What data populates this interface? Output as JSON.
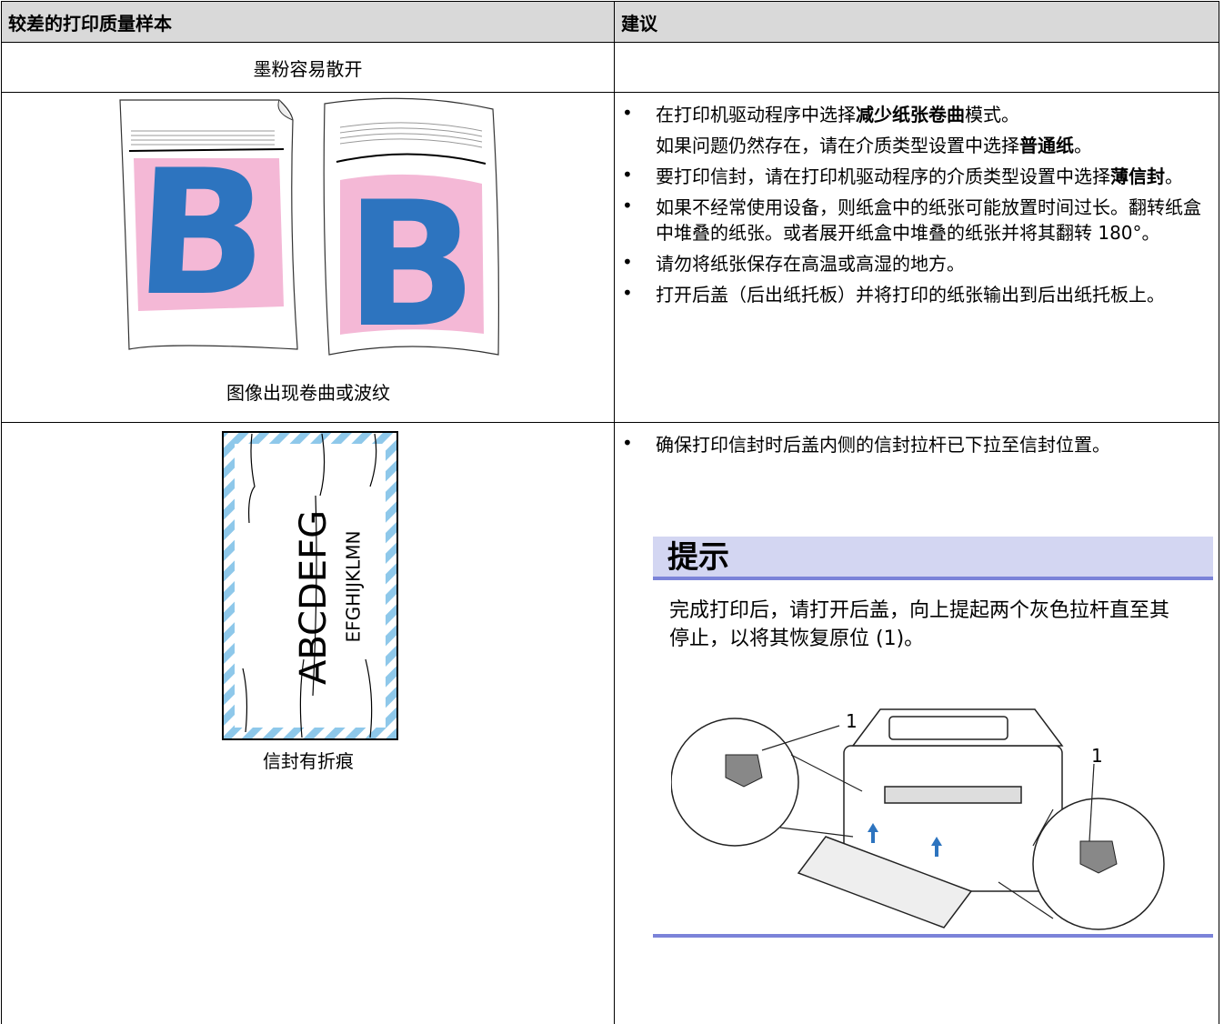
{
  "table": {
    "headers": [
      "较差的打印质量样本",
      "建议"
    ],
    "rows": [
      {
        "sample": {
          "caption": "墨粉容易散开"
        },
        "suggestions": []
      },
      {
        "sample": {
          "caption": "图像出现卷曲或波纹",
          "illustration_text": [
            "B",
            "B"
          ]
        },
        "suggestions": [
          [
            [
              {
                "text": "在打印机驱动程序中选择",
                "bold": false
              },
              {
                "text": "减少纸张卷曲",
                "bold": true
              },
              {
                "text": "模式。",
                "bold": false
              }
            ],
            [
              {
                "text": "如果问题仍然存在，请在介质类型设置中选择",
                "bold": false
              },
              {
                "text": "普通纸",
                "bold": true
              },
              {
                "text": "。",
                "bold": false
              }
            ]
          ],
          [
            [
              {
                "text": "要打印信封，请在打印机驱动程序的介质类型设置中选择",
                "bold": false
              },
              {
                "text": "薄信封",
                "bold": true
              },
              {
                "text": "。",
                "bold": false
              }
            ]
          ],
          [
            [
              {
                "text": "如果不经常使用设备，则纸盒中的纸张可能放置时间过长。翻转纸盒中堆叠的纸张。或者展开纸盒中堆叠的纸张并将其翻转 180°。",
                "bold": false
              }
            ]
          ],
          [
            [
              {
                "text": "请勿将纸张保存在高温或高湿的地方。",
                "bold": false
              }
            ]
          ],
          [
            [
              {
                "text": "打开后盖（后出纸托板）并将打印的纸张输出到后出纸托板上。",
                "bold": false
              }
            ]
          ]
        ]
      },
      {
        "sample": {
          "caption": "信封有折痕",
          "illustration_text": [
            "ABCDEFG",
            "EFGHIJKLMN"
          ]
        },
        "suggestions": [
          [
            [
              {
                "text": "确保打印信封时后盖内侧的信封拉杆已下拉至信封位置。",
                "bold": false
              }
            ]
          ]
        ],
        "note": {
          "title": "提示",
          "text": "完成打印后，请打开后盖，向上提起两个灰色拉杆直至其停止，以将其恢复原位 (1)。",
          "callouts": [
            "1",
            "1"
          ]
        }
      }
    ]
  }
}
